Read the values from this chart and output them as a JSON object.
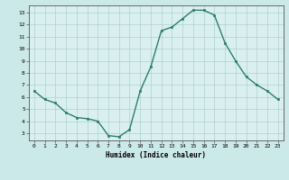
{
  "x": [
    0,
    1,
    2,
    3,
    4,
    5,
    6,
    7,
    8,
    9,
    10,
    11,
    12,
    13,
    14,
    15,
    16,
    17,
    18,
    19,
    20,
    21,
    22,
    23
  ],
  "y": [
    6.5,
    5.8,
    5.5,
    4.7,
    4.3,
    4.2,
    4.0,
    2.8,
    2.7,
    3.3,
    6.5,
    8.5,
    11.5,
    11.8,
    12.5,
    13.2,
    13.2,
    12.8,
    10.5,
    9.0,
    7.7,
    7.0,
    6.5,
    5.8
  ],
  "xlabel": "Humidex (Indice chaleur)",
  "ylim": [
    2.4,
    13.6
  ],
  "xlim": [
    -0.5,
    23.5
  ],
  "yticks": [
    3,
    4,
    5,
    6,
    7,
    8,
    9,
    10,
    11,
    12,
    13
  ],
  "xticks": [
    0,
    1,
    2,
    3,
    4,
    5,
    6,
    7,
    8,
    9,
    10,
    11,
    12,
    13,
    14,
    15,
    16,
    17,
    18,
    19,
    20,
    21,
    22,
    23
  ],
  "line_color": "#2d7d6f",
  "marker_color": "#2d7d6f",
  "bg_color": "#cce9e9",
  "grid_color": "#aecfcf",
  "plot_bg": "#daf0f0"
}
